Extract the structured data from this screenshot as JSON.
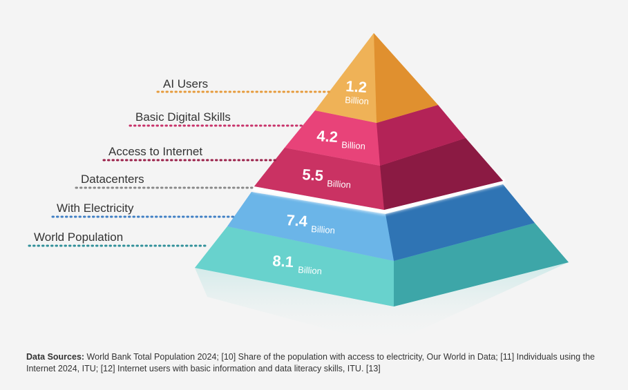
{
  "layers": [
    {
      "label": "AI Users",
      "value": "1.2",
      "unit": "Billion",
      "color": "#e8a64a",
      "dot_color": "#e69b3c"
    },
    {
      "label": "Basic Digital Skills",
      "value": "4.2",
      "unit": "Billion",
      "color": "#d6336a",
      "dot_color": "#c8326a"
    },
    {
      "label": "Access to Internet",
      "value": "5.5",
      "unit": "Billion",
      "color": "#a8224f",
      "dot_color": "#9a2049"
    },
    {
      "label": "Datacenters",
      "value": "",
      "unit": "",
      "color": "#ffffff",
      "dot_color": "#888888"
    },
    {
      "label": "With Electricity",
      "value": "7.4",
      "unit": "Billion",
      "color": "#4d8fd0",
      "dot_color": "#3f7fc4"
    },
    {
      "label": "World Population",
      "value": "8.1",
      "unit": "Billion",
      "color": "#5fc9c6",
      "dot_color": "#2f8f99"
    }
  ],
  "sources": {
    "heading": "Data Sources:",
    "text": "World Bank Total Population 2024; [10] Share of the population with access to electricity, Our World in Data; [11] Individuals using the Internet 2024, ITU; [12] Internet users with basic information and data literacy skills, ITU. [13]"
  }
}
